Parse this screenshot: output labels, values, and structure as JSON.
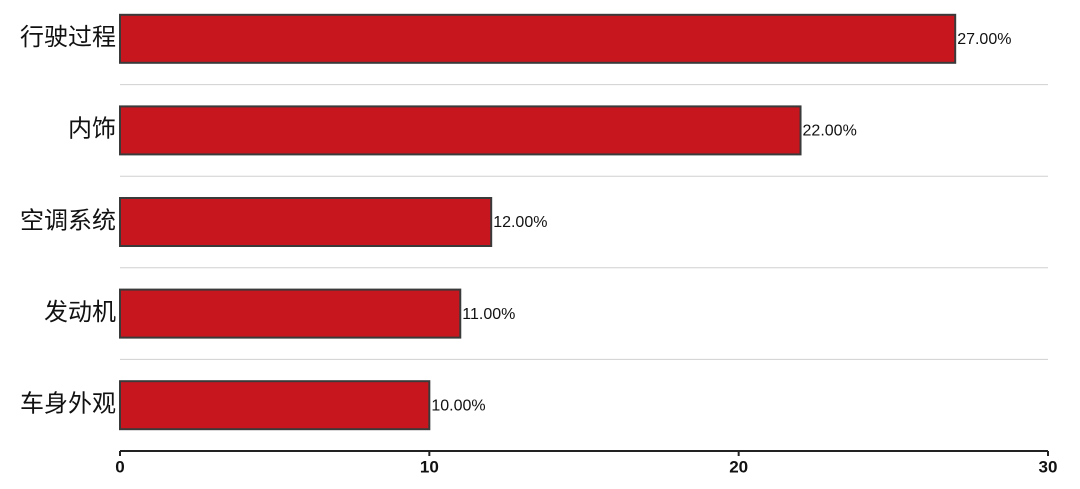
{
  "chart_data": {
    "type": "bar",
    "orientation": "horizontal",
    "categories": [
      "行驶过程",
      "内饰",
      "空调系统",
      "发动机",
      "车身外观"
    ],
    "values": [
      27,
      22,
      12,
      11,
      10
    ],
    "value_labels": [
      "27.00%",
      "22.00%",
      "12.00%",
      "11.00%",
      "10.00%"
    ],
    "color": "#c8161e",
    "xlim": [
      0,
      30
    ],
    "xticks": [
      0,
      10,
      20,
      30
    ]
  }
}
